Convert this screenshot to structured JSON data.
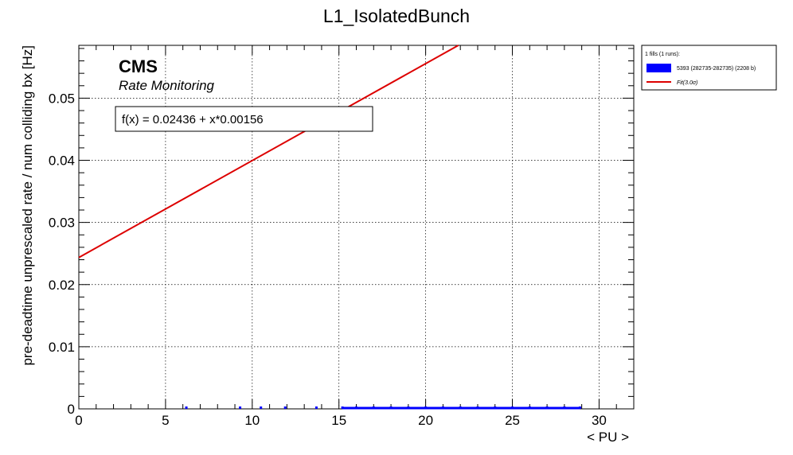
{
  "chart_data": {
    "type": "scatter",
    "title": "L1_IsolatedBunch",
    "xlabel": "< PU >",
    "ylabel": "pre-deadtime unprescaled rate / num colliding bx [Hz]",
    "xlim": [
      0,
      32
    ],
    "ylim": [
      0,
      0.0585
    ],
    "x_ticks": [
      0,
      5,
      10,
      15,
      20,
      25,
      30
    ],
    "x_tick_labels": [
      "0",
      "5",
      "10",
      "15",
      "20",
      "25",
      "30"
    ],
    "y_ticks": [
      0,
      0.01,
      0.02,
      0.03,
      0.04,
      0.05
    ],
    "y_tick_labels": [
      "0",
      "0.01",
      "0.02",
      "0.03",
      "0.04",
      "0.05"
    ],
    "grid": true,
    "legend_position": "top-right-outside",
    "series": [
      {
        "name": "5393 (282735-282735) (2208 b)",
        "kind": "points",
        "color": "#0000ff",
        "x": [
          6.2,
          9.3,
          10.5,
          11.9,
          13.7,
          15.2,
          16,
          17,
          18,
          19,
          20,
          21,
          22,
          23,
          24,
          25,
          26,
          27,
          28,
          28.9
        ],
        "y": [
          0,
          0,
          0,
          0,
          0,
          0,
          0,
          0,
          0,
          0,
          0,
          0,
          0,
          0,
          0,
          0,
          0,
          0,
          0,
          0
        ]
      },
      {
        "name": "Fit(3.0σ)",
        "kind": "line",
        "color": "#dd0000",
        "intercept": 0.02436,
        "slope": 0.00156
      }
    ]
  },
  "labels": {
    "cms": "CMS",
    "subtitle": "Rate Monitoring",
    "fit_formula": "f(x) = 0.02436 + x*0.00156"
  },
  "legend": {
    "header": "1 fills (1 runs):",
    "fill_entry": "5393 (282735-282735) (2208 b)",
    "fit_entry": "Fit(3.0σ)"
  }
}
